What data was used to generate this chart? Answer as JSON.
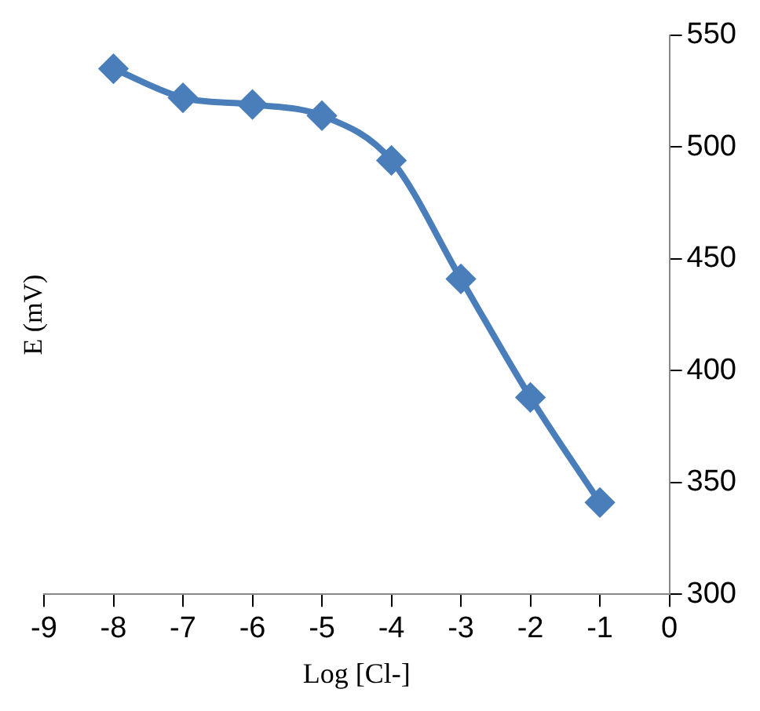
{
  "chart_data": {
    "type": "line",
    "xlabel": "Log [Cl-]",
    "ylabel": "E (mV)",
    "x": [
      -8,
      -7,
      -6,
      -5,
      -4,
      -3,
      -2,
      -1
    ],
    "series": [
      {
        "color": "#4a7ebb",
        "values": [
          535,
          522,
          519,
          514,
          494,
          441,
          388,
          341
        ]
      }
    ],
    "xlim": [
      -9,
      0
    ],
    "xticks": [
      -9,
      -8,
      -7,
      -6,
      -5,
      -4,
      -3,
      -2,
      -1,
      0
    ],
    "ylim": [
      300,
      550
    ],
    "yticks": [
      300,
      350,
      400,
      450,
      500,
      550
    ],
    "grid": false,
    "legend": false,
    "marker": "diamond",
    "line_style": "solid"
  }
}
